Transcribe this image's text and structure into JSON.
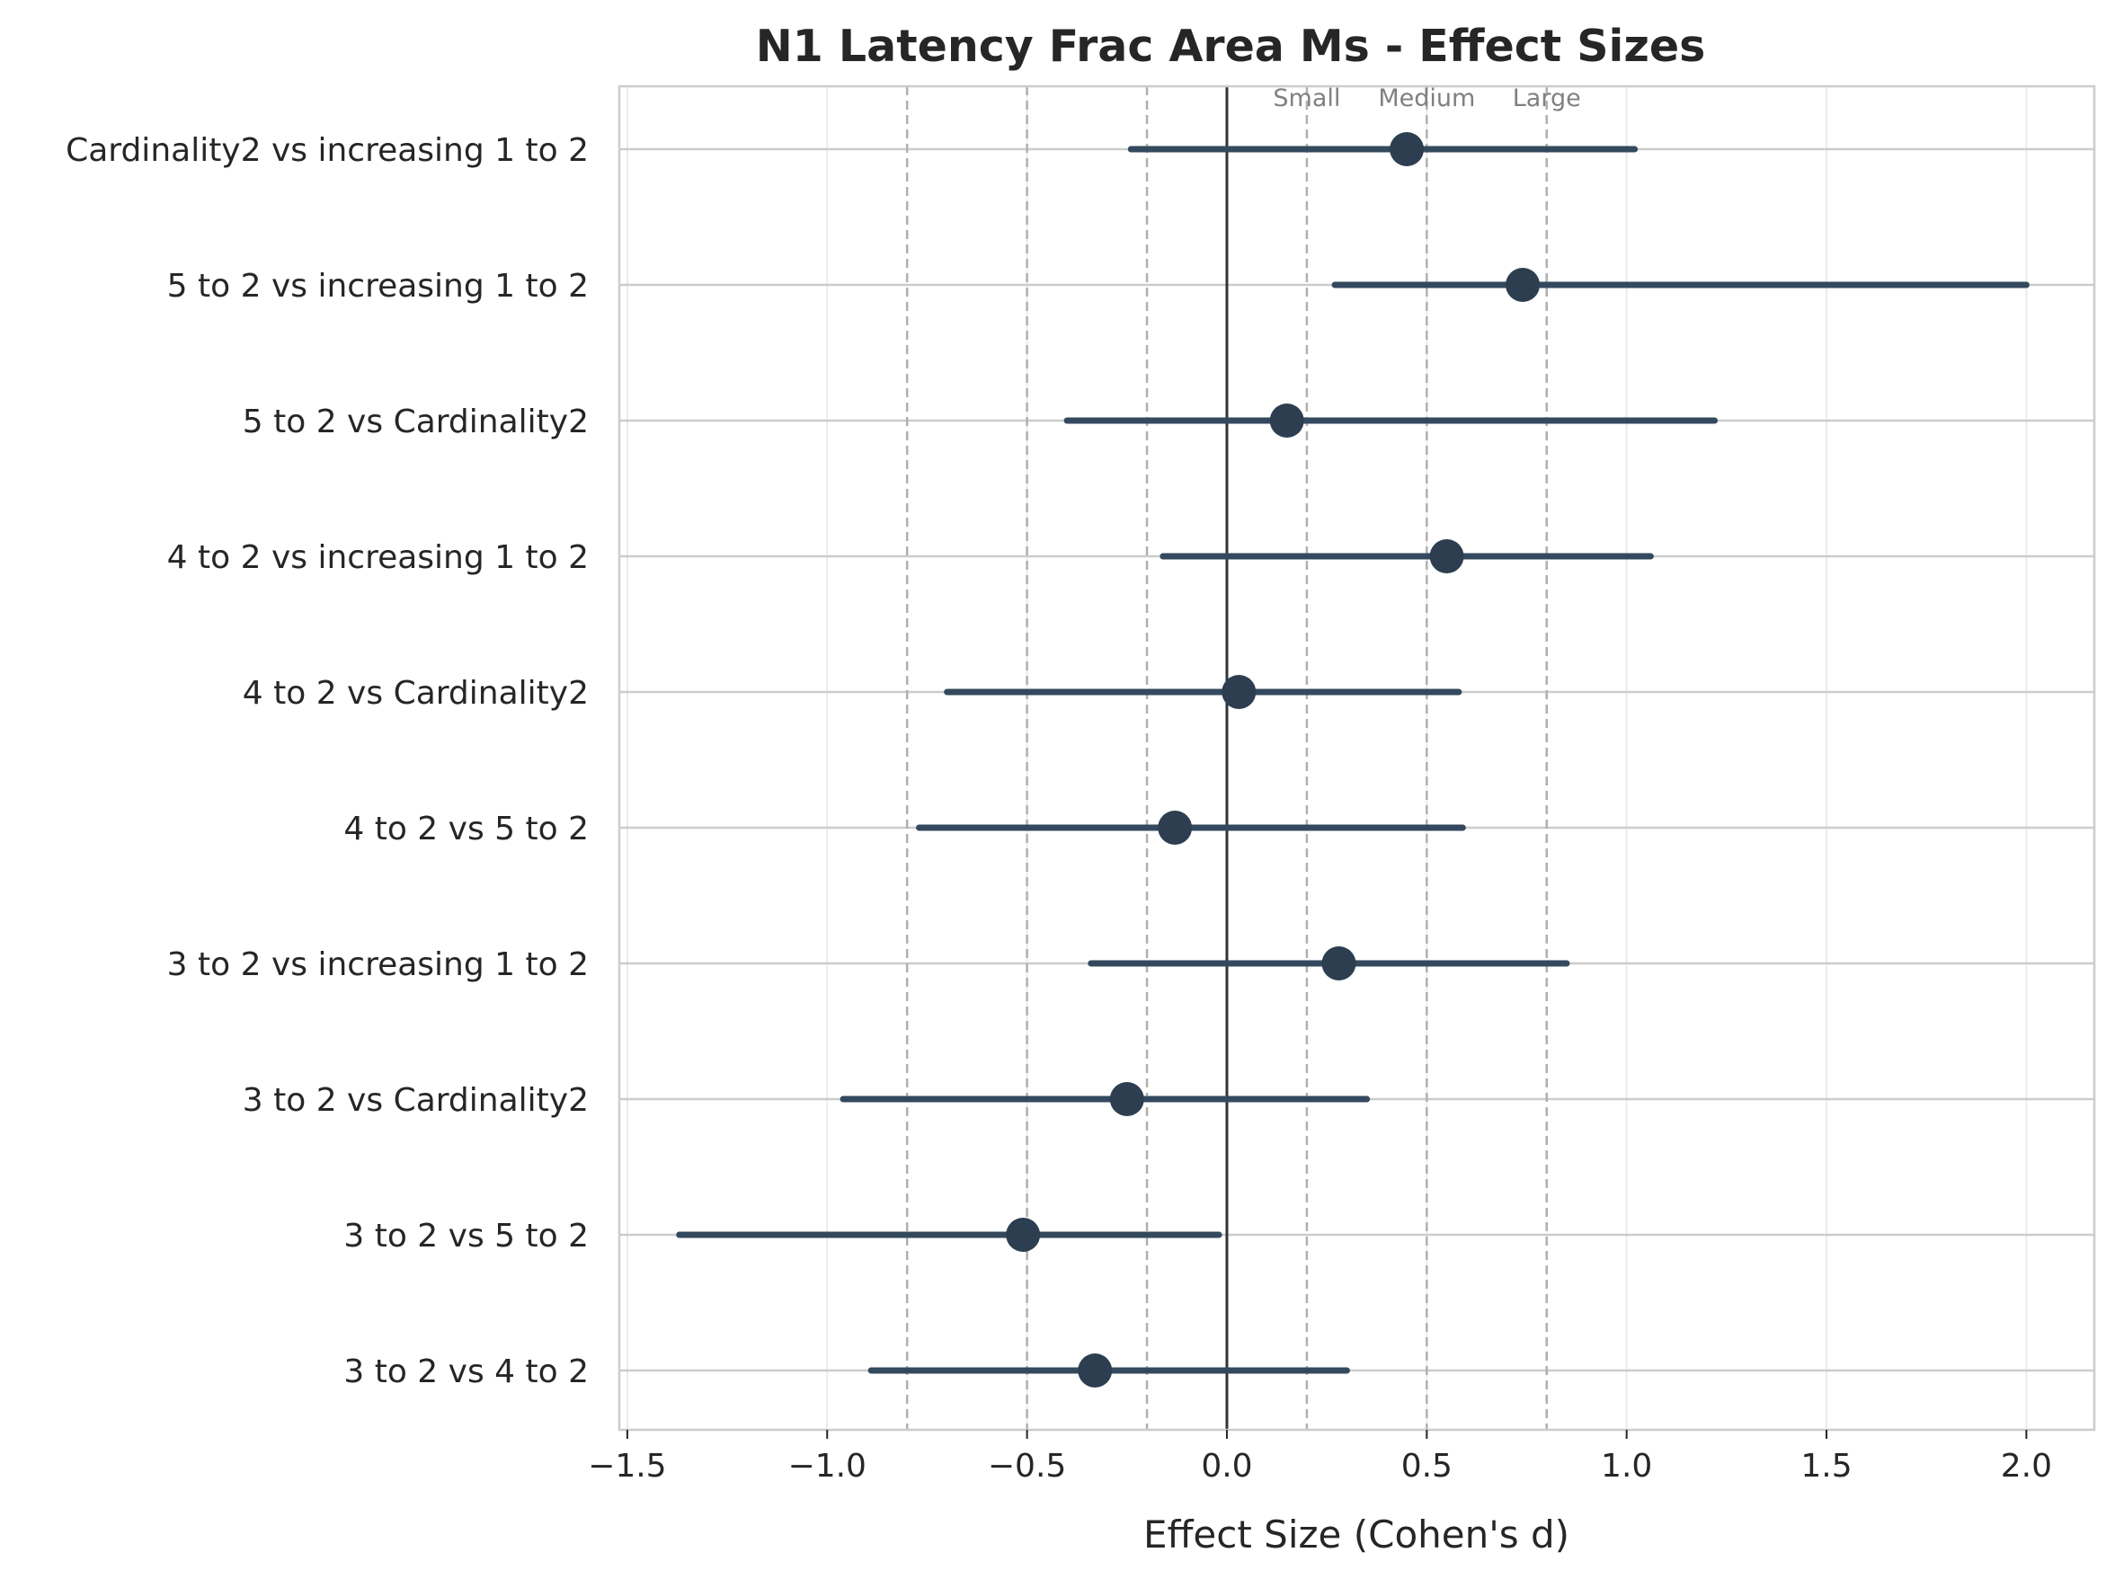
{
  "chart_data": {
    "type": "scatter",
    "subtype": "forest-plot",
    "title": "N1 Latency Frac Area Ms - Effect Sizes",
    "xlabel": "Effect Size (Cohen's d)",
    "ylabel": "",
    "xlim": [
      -1.52,
      2.17
    ],
    "x_ticks": [
      -1.5,
      -1.0,
      -0.5,
      0.0,
      0.5,
      1.0,
      1.5,
      2.0
    ],
    "x_tick_labels": [
      "−1.5",
      "−1.0",
      "−0.5",
      "0.0",
      "0.5",
      "1.0",
      "1.5",
      "2.0"
    ],
    "grid": true,
    "point_color": "#2c3e50",
    "line_color": "#34495e",
    "threshold_color": "#b0b0b0",
    "zero_line_color": "#333333",
    "thresholds": [
      {
        "value": -0.8,
        "label": ""
      },
      {
        "value": -0.5,
        "label": ""
      },
      {
        "value": -0.2,
        "label": ""
      },
      {
        "value": 0.2,
        "label": "Small"
      },
      {
        "value": 0.5,
        "label": "Medium"
      },
      {
        "value": 0.8,
        "label": "Large"
      }
    ],
    "comparisons": [
      {
        "label": "Cardinality2 vs increasing 1 to 2",
        "d": 0.45,
        "ci_low": -0.24,
        "ci_high": 1.02
      },
      {
        "label": "5 to 2 vs increasing 1 to 2",
        "d": 0.74,
        "ci_low": 0.27,
        "ci_high": 2.0
      },
      {
        "label": "5 to 2 vs Cardinality2",
        "d": 0.15,
        "ci_low": -0.4,
        "ci_high": 1.22
      },
      {
        "label": "4 to 2 vs increasing 1 to 2",
        "d": 0.55,
        "ci_low": -0.16,
        "ci_high": 1.06
      },
      {
        "label": "4 to 2 vs Cardinality2",
        "d": 0.03,
        "ci_low": -0.7,
        "ci_high": 0.58
      },
      {
        "label": "4 to 2 vs 5 to 2",
        "d": -0.13,
        "ci_low": -0.77,
        "ci_high": 0.59
      },
      {
        "label": "3 to 2 vs increasing 1 to 2",
        "d": 0.28,
        "ci_low": -0.34,
        "ci_high": 0.85
      },
      {
        "label": "3 to 2 vs Cardinality2",
        "d": -0.25,
        "ci_low": -0.96,
        "ci_high": 0.35
      },
      {
        "label": "3 to 2 vs 5 to 2",
        "d": -0.51,
        "ci_low": -1.37,
        "ci_high": -0.02
      },
      {
        "label": "3 to 2 vs 4 to 2",
        "d": -0.33,
        "ci_low": -0.89,
        "ci_high": 0.3
      }
    ]
  }
}
